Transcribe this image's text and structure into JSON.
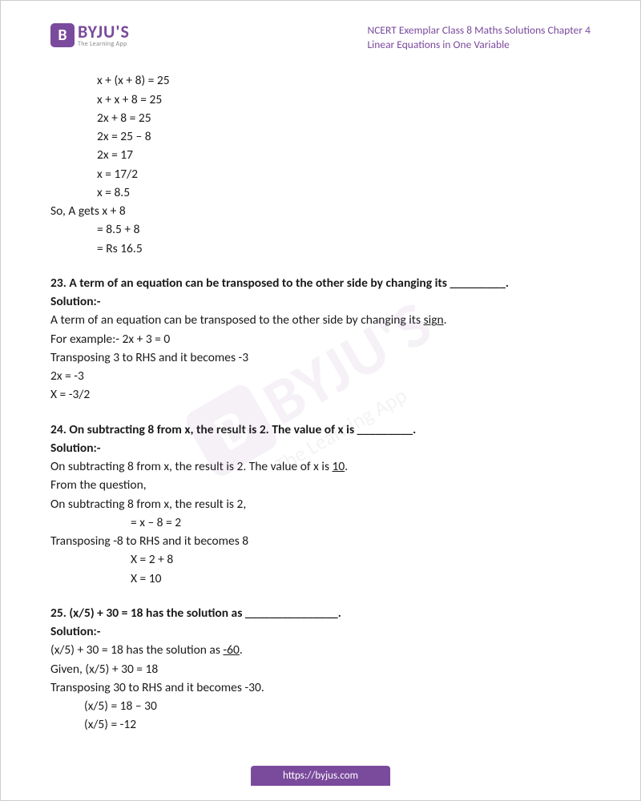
{
  "brand": {
    "badge_letter": "B",
    "name": "BYJU'S",
    "tagline": "The Learning App",
    "color": "#7a4a9c"
  },
  "header": {
    "line1": "NCERT Exemplar Class 8 Maths Solutions Chapter 4",
    "line2": "Linear Equations in One Variable"
  },
  "intro": {
    "steps": [
      "x + (x + 8) = 25",
      "x + x + 8 = 25",
      "2x + 8 = 25",
      "2x = 25 – 8",
      "2x = 17",
      "x = 17/2",
      "x = 8.5"
    ],
    "result_lead": "So, A gets x + 8",
    "result_steps": [
      "= 8.5 + 8",
      "= Rs 16.5"
    ]
  },
  "q23": {
    "prompt": "23. A term of an equation can be transposed to the other side by changing its _________.",
    "solution_label": "Solution:-",
    "ans_prefix": "A term of an equation can be transposed to the other side by changing its ",
    "ans_word": "sign",
    "ans_suffix": ".",
    "ex1": "For example:- 2x + 3 = 0",
    "ex2": "Transposing 3 to RHS and it becomes -3",
    "ex3": "2x = -3",
    "ex4": "X = -3/2"
  },
  "q24": {
    "prompt": "24. On subtracting 8 from x, the result is 2. The value of x is _________.",
    "solution_label": "Solution:-",
    "ans_prefix": "On subtracting 8 from x, the result is 2. The value of x is ",
    "ans_word": "10",
    "ans_suffix": ".",
    "l1": "From the question,",
    "l2": "On subtracting 8 from x, the result is 2,",
    "l3": "= x – 8 = 2",
    "l4": "Transposing -8 to RHS and it becomes 8",
    "l5": "X = 2 + 8",
    "l6": "X = 10"
  },
  "q25": {
    "prompt": "25. (x/5) + 30 = 18 has the solution as _______________.",
    "solution_label": "Solution:-",
    "ans_prefix": "(x/5) + 30 = 18 has the solution as ",
    "ans_word": "-60",
    "ans_suffix": ".",
    "l1": "Given, (x/5) + 30 = 18",
    "l2": "Transposing 30 to RHS and it becomes -30.",
    "l3": "(x/5) = 18 – 30",
    "l4": "(x/5) = -12"
  },
  "footer_url": "https://byjus.com"
}
